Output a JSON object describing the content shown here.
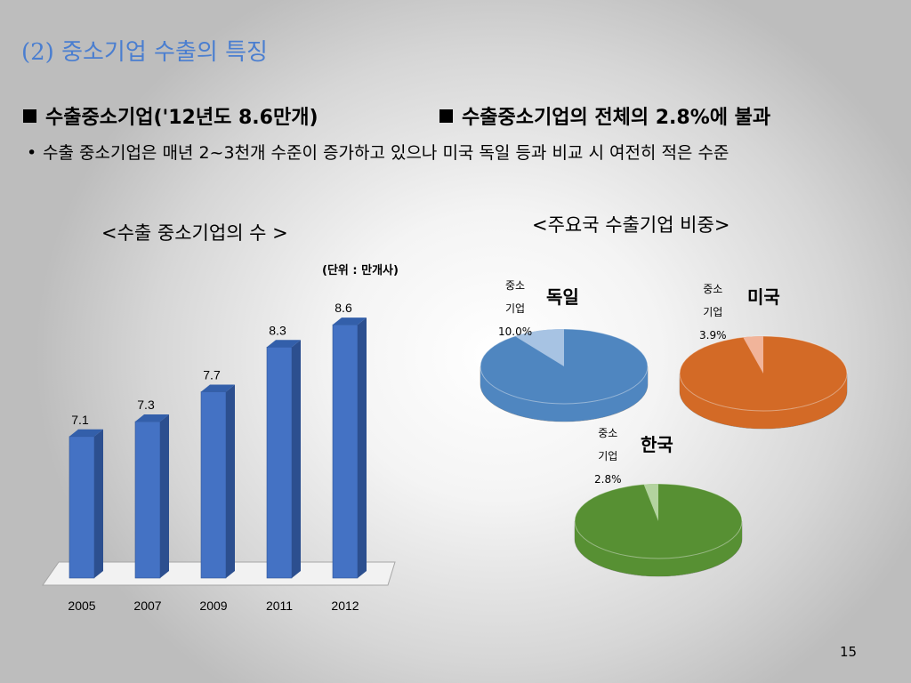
{
  "section_title": "(2) 중소기업 수출의 특징",
  "headline_left": "수출중소기업('12년도 8.6만개)",
  "headline_right": "수출중소기업의 전체의 2.8%에 불과",
  "body_bullet": "수출 중소기업은 매년 2~3천개 수준이 증가하고 있으나 미국 독일 등과 비교 시 여전히 적은 수준",
  "page_number": "15",
  "chart_data": [
    {
      "type": "bar",
      "title": "<수출 중소기업의 수 >",
      "unit": "(단위 : 만개사)",
      "categories": [
        "2005",
        "2007",
        "2009",
        "2011",
        "2012"
      ],
      "values": [
        7.1,
        7.3,
        7.7,
        8.3,
        8.6
      ],
      "data_labels": [
        "7.1",
        "7.3",
        "7.7",
        "8.3",
        "8.6"
      ],
      "ylim": [
        5.2,
        8.9
      ],
      "bar_color": "#4472c4",
      "style": "3d"
    },
    {
      "type": "pie",
      "title": "<주요국 수출기업 비중>",
      "slice_label": "중소기업",
      "pies": [
        {
          "name": "독일",
          "value": 10.0,
          "label": "10.0%",
          "color": "#4f86c0",
          "slice_color": "#a7c3e3"
        },
        {
          "name": "미국",
          "value": 3.9,
          "label": "3.9%",
          "color": "#d36a26",
          "slice_color": "#f1b49a"
        },
        {
          "name": "한국",
          "value": 2.8,
          "label": "2.8%",
          "color": "#579033",
          "slice_color": "#b3d39f"
        }
      ]
    }
  ]
}
